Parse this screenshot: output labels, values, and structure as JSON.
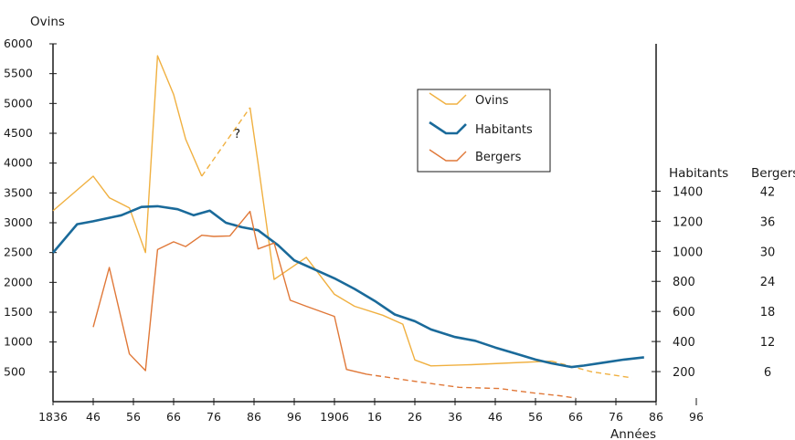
{
  "chart_data": {
    "type": "line",
    "ylabel_left": "Ovins",
    "xlabel": "Années",
    "ylabel_right_1": "Habitants",
    "ylabel_right_2": "Bergers",
    "x_tick_labels": [
      "1836",
      "46",
      "56",
      "66",
      "76",
      "86",
      "96",
      "1906",
      "16",
      "26",
      "36",
      "46",
      "56",
      "66",
      "76",
      "86",
      "96"
    ],
    "y_left": {
      "ticks": [
        500,
        1000,
        1500,
        2000,
        2500,
        3000,
        3500,
        4000,
        4500,
        5000,
        5500,
        6000
      ],
      "range": [
        0,
        6000
      ]
    },
    "y_right_habitants": {
      "ticks": [
        200,
        400,
        600,
        800,
        1000,
        1200,
        1400
      ],
      "range": [
        0,
        1700
      ]
    },
    "y_right_bergers": {
      "tick_labels": [
        "6",
        "12",
        "18",
        "24",
        "30",
        "36",
        "42"
      ]
    },
    "annotation": "?",
    "legend": [
      "Ovins",
      "Habitants",
      "Bergers"
    ],
    "colors": {
      "ovins": "#f0b040",
      "habitants": "#1a6a9a",
      "bergers": "#e07838",
      "axis": "#1a1a1a"
    },
    "series": [
      {
        "name": "Ovins",
        "axis": "left",
        "solid": [
          [
            1836,
            3200
          ],
          [
            1846,
            3780
          ],
          [
            1850,
            3420
          ],
          [
            1855,
            3250
          ],
          [
            1859,
            2500
          ],
          [
            1862,
            5800
          ],
          [
            1866,
            5150
          ],
          [
            1869,
            4400
          ],
          [
            1873,
            3780
          ]
        ],
        "dashed": [
          [
            1873,
            3780
          ],
          [
            1885,
            4930
          ]
        ],
        "solid2": [
          [
            1885,
            4930
          ],
          [
            1887,
            4000
          ],
          [
            1891,
            2050
          ],
          [
            1899,
            2420
          ],
          [
            1906,
            1800
          ],
          [
            1911,
            1600
          ],
          [
            1918,
            1450
          ],
          [
            1923,
            1300
          ],
          [
            1926,
            700
          ],
          [
            1930,
            600
          ],
          [
            1940,
            620
          ],
          [
            1950,
            650
          ],
          [
            1960,
            680
          ]
        ],
        "dashed2": [
          [
            1960,
            680
          ],
          [
            1970,
            500
          ],
          [
            1980,
            400
          ]
        ]
      },
      {
        "name": "Habitants",
        "axis": "right",
        "solid": [
          [
            1836,
            990
          ],
          [
            1842,
            1180
          ],
          [
            1846,
            1200
          ],
          [
            1853,
            1240
          ],
          [
            1858,
            1295
          ],
          [
            1862,
            1300
          ],
          [
            1867,
            1280
          ],
          [
            1871,
            1240
          ],
          [
            1875,
            1270
          ],
          [
            1879,
            1190
          ],
          [
            1883,
            1160
          ],
          [
            1887,
            1140
          ],
          [
            1892,
            1040
          ],
          [
            1896,
            940
          ],
          [
            1901,
            880
          ],
          [
            1906,
            820
          ],
          [
            1911,
            750
          ],
          [
            1916,
            670
          ],
          [
            1921,
            580
          ],
          [
            1926,
            535
          ],
          [
            1930,
            480
          ],
          [
            1936,
            430
          ],
          [
            1941,
            405
          ],
          [
            1946,
            360
          ],
          [
            1951,
            320
          ],
          [
            1956,
            280
          ],
          [
            1960,
            255
          ],
          [
            1965,
            230
          ],
          [
            1968,
            240
          ],
          [
            1973,
            260
          ],
          [
            1978,
            280
          ],
          [
            1983,
            295
          ]
        ]
      },
      {
        "name": "Bergers",
        "axis": "right",
        "solid": [
          [
            1846,
            1250
          ],
          [
            1850,
            2250
          ],
          [
            1855,
            800
          ],
          [
            1859,
            520
          ],
          [
            1862,
            2550
          ],
          [
            1866,
            2680
          ],
          [
            1869,
            2600
          ],
          [
            1873,
            2790
          ],
          [
            1876,
            2770
          ],
          [
            1880,
            2780
          ],
          [
            1885,
            3190
          ],
          [
            1887,
            2560
          ],
          [
            1891,
            2660
          ],
          [
            1895,
            1700
          ],
          [
            1899,
            1600
          ],
          [
            1906,
            1430
          ],
          [
            1909,
            540
          ],
          [
            1914,
            460
          ]
        ],
        "dashed": [
          [
            1914,
            460
          ],
          [
            1925,
            350
          ],
          [
            1937,
            240
          ],
          [
            1947,
            220
          ],
          [
            1955,
            150
          ],
          [
            1962,
            100
          ],
          [
            1966,
            60
          ]
        ]
      }
    ]
  }
}
